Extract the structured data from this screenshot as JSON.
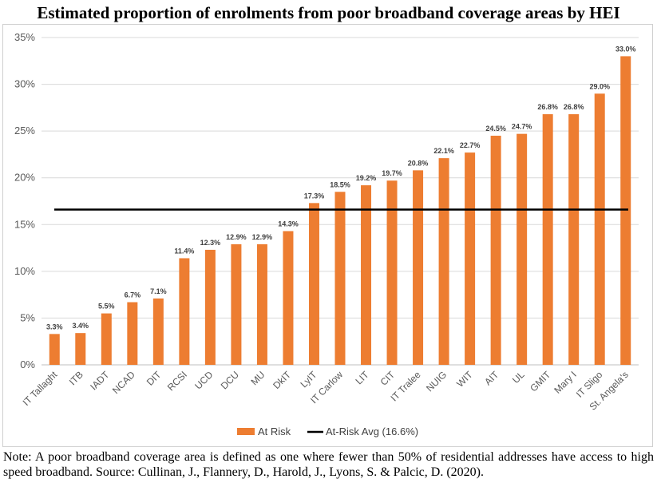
{
  "chart_data": {
    "type": "bar",
    "title": "Estimated proportion of enrolments from poor broadband coverage areas by HEI",
    "categories": [
      "IT Tallaght",
      "ITB",
      "IADT",
      "NCAD",
      "DIT",
      "RCSI",
      "UCD",
      "DCU",
      "MU",
      "DkIT",
      "LyIT",
      "IT Carlow",
      "LIT",
      "CIT",
      "IT Tralee",
      "NUIG",
      "WIT",
      "AIT",
      "UL",
      "GMIT",
      "Mary I",
      "IT Sligo",
      "St. Angela's"
    ],
    "series": [
      {
        "name": "At Risk",
        "color": "#ED7D31",
        "values": [
          3.3,
          3.4,
          5.5,
          6.7,
          7.1,
          11.4,
          12.3,
          12.9,
          12.9,
          14.3,
          17.3,
          18.5,
          19.2,
          19.7,
          20.8,
          22.1,
          22.7,
          24.5,
          24.7,
          26.8,
          26.8,
          29.0,
          33.0
        ],
        "labels": [
          "3.3%",
          "3.4%",
          "5.5%",
          "6.7%",
          "7.1%",
          "11.4%",
          "12.3%",
          "12.9%",
          "12.9%",
          "14.3%",
          "17.3%",
          "18.5%",
          "19.2%",
          "19.7%",
          "20.8%",
          "22.1%",
          "22.7%",
          "24.5%",
          "24.7%",
          "26.8%",
          "26.8%",
          "29.0%",
          "33.0%"
        ]
      }
    ],
    "reference_line": {
      "name": "At-Risk Avg (16.6%)",
      "value": 16.6,
      "color": "#000000"
    },
    "yticks": [
      "0%",
      "5%",
      "10%",
      "15%",
      "20%",
      "25%",
      "30%",
      "35%"
    ],
    "ylim": [
      0,
      35
    ],
    "grid": true,
    "legend_position": "bottom"
  },
  "note": "Note: A poor broadband coverage area is defined as one where fewer than 50% of residential addresses have access to high speed broadband. Source: Cullinan, J., Flannery, D., Harold, J., Lyons, S. & Palcic, D. (2020)."
}
